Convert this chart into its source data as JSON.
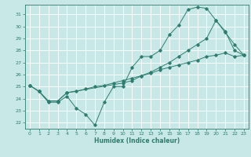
{
  "xlabel": "Humidex (Indice chaleur)",
  "bg_color": "#c8e8e8",
  "line_color": "#2e7d6e",
  "grid_color": "#ffffff",
  "xlim": [
    -0.5,
    23.5
  ],
  "ylim": [
    21.5,
    31.8
  ],
  "xticks": [
    0,
    1,
    2,
    3,
    4,
    5,
    6,
    7,
    8,
    9,
    10,
    11,
    12,
    13,
    14,
    15,
    16,
    17,
    18,
    19,
    20,
    21,
    22,
    23
  ],
  "yticks": [
    22,
    23,
    24,
    25,
    26,
    27,
    28,
    29,
    30,
    31
  ],
  "line1_x": [
    0,
    1,
    2,
    3,
    4,
    5,
    6,
    7,
    8,
    9,
    10,
    11,
    12,
    13,
    14,
    15,
    16,
    17,
    18,
    19,
    20,
    21,
    22,
    23
  ],
  "line1_y": [
    25.1,
    24.6,
    23.7,
    23.7,
    24.2,
    23.2,
    22.7,
    21.8,
    23.7,
    25.0,
    25.0,
    26.6,
    27.5,
    27.5,
    28.0,
    29.3,
    30.1,
    31.4,
    31.6,
    31.5,
    30.5,
    29.6,
    28.0,
    27.6
  ],
  "line2_x": [
    0,
    1,
    2,
    3,
    4,
    10,
    11,
    12,
    13,
    14,
    15,
    16,
    17,
    18,
    19,
    20,
    21,
    22,
    23
  ],
  "line2_y": [
    25.1,
    24.6,
    23.8,
    23.8,
    24.5,
    25.3,
    25.5,
    25.9,
    26.2,
    26.6,
    27.0,
    27.5,
    28.0,
    28.5,
    29.0,
    30.5,
    29.5,
    28.5,
    27.6
  ],
  "line3_x": [
    0,
    1,
    2,
    3,
    4,
    5,
    6,
    7,
    8,
    9,
    10,
    11,
    12,
    13,
    14,
    15,
    16,
    17,
    18,
    19,
    20,
    21,
    22,
    23
  ],
  "line3_y": [
    25.1,
    24.6,
    23.8,
    23.8,
    24.5,
    24.6,
    24.8,
    25.0,
    25.1,
    25.3,
    25.5,
    25.7,
    25.9,
    26.1,
    26.4,
    26.6,
    26.8,
    27.0,
    27.2,
    27.5,
    27.6,
    27.8,
    27.5,
    27.6
  ]
}
